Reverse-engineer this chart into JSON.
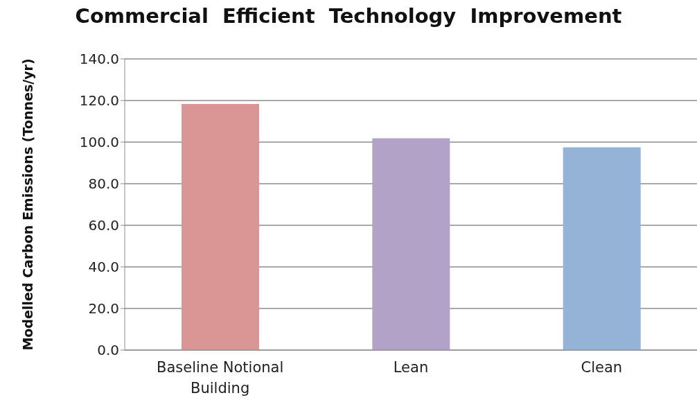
{
  "chart_data": {
    "type": "bar",
    "title": "Commercial  Efficient  Technology  Improvement",
    "ylabel": "Modelled Carbon  Emissions  (Tonnes/yr)",
    "categories": [
      "Baseline Notional Building",
      "Lean",
      "Clean"
    ],
    "values": [
      118.3,
      101.8,
      97.5
    ],
    "colors": [
      "#d99694",
      "#b3a2c7",
      "#95b3d7"
    ],
    "ylim": [
      0,
      140
    ],
    "yticks": [
      {
        "value": 0,
        "label": "0.0"
      },
      {
        "value": 20,
        "label": "20.0"
      },
      {
        "value": 40,
        "label": "40.0"
      },
      {
        "value": 60,
        "label": "60.0"
      },
      {
        "value": 80,
        "label": "80.0"
      },
      {
        "value": 100,
        "label": "100.0"
      },
      {
        "value": 120,
        "label": "120.0"
      },
      {
        "value": 140,
        "label": "140.0"
      }
    ],
    "grid": "y",
    "legend": false
  }
}
